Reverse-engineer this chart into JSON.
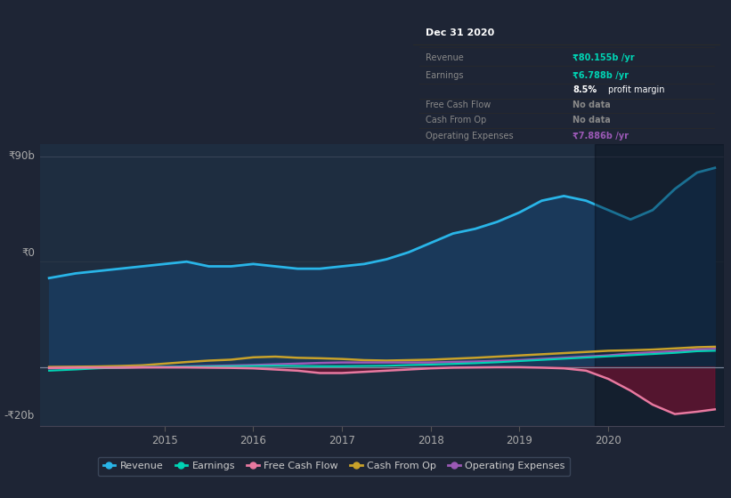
{
  "background_color": "#1e2535",
  "plot_bg_color": "#1e2d40",
  "ylim": [
    -25,
    95
  ],
  "xlim": [
    2013.6,
    2021.3
  ],
  "revenue_color": "#29b5e8",
  "revenue_fill": "#1a3a5c",
  "earnings_color": "#00d4b4",
  "free_cashflow_color": "#e879a0",
  "cash_from_op_color": "#c9a22a",
  "operating_exp_color": "#9b59b6",
  "shaded_fill_color": "#5c1a35",
  "dark_overlay_color": "#0a0f1a",
  "revenue_x": [
    2013.7,
    2014.0,
    2014.25,
    2014.5,
    2014.75,
    2015.0,
    2015.25,
    2015.5,
    2015.75,
    2016.0,
    2016.25,
    2016.5,
    2016.75,
    2017.0,
    2017.25,
    2017.5,
    2017.75,
    2018.0,
    2018.25,
    2018.5,
    2018.75,
    2019.0,
    2019.25,
    2019.5,
    2019.75,
    2020.0,
    2020.25,
    2020.5,
    2020.75,
    2021.0,
    2021.2
  ],
  "revenue_y": [
    38,
    40,
    41,
    42,
    43,
    44,
    45,
    43,
    43,
    44,
    43,
    42,
    42,
    43,
    44,
    46,
    49,
    53,
    57,
    59,
    62,
    66,
    71,
    73,
    71,
    67,
    63,
    67,
    76,
    83,
    85
  ],
  "earnings_x": [
    2013.7,
    2014.0,
    2014.25,
    2014.5,
    2014.75,
    2015.0,
    2015.25,
    2015.5,
    2015.75,
    2016.0,
    2016.25,
    2016.5,
    2016.75,
    2017.0,
    2017.25,
    2017.5,
    2017.75,
    2018.0,
    2018.25,
    2018.5,
    2018.75,
    2019.0,
    2019.25,
    2019.5,
    2019.75,
    2020.0,
    2020.25,
    2020.5,
    2020.75,
    2021.0,
    2021.2
  ],
  "earnings_y": [
    -1.5,
    -1.0,
    -0.5,
    -0.2,
    0.0,
    0.1,
    0.2,
    0.3,
    0.4,
    0.5,
    0.6,
    0.5,
    0.4,
    0.4,
    0.5,
    0.6,
    0.9,
    1.1,
    1.4,
    1.7,
    2.1,
    2.6,
    3.1,
    3.6,
    4.1,
    4.6,
    5.1,
    5.6,
    6.1,
    6.8,
    7.0
  ],
  "free_cashflow_x": [
    2013.7,
    2014.0,
    2014.25,
    2014.5,
    2014.75,
    2015.0,
    2015.25,
    2015.5,
    2015.75,
    2016.0,
    2016.25,
    2016.5,
    2016.75,
    2017.0,
    2017.25,
    2017.5,
    2017.75,
    2018.0,
    2018.25,
    2018.5,
    2018.75,
    2019.0,
    2019.25,
    2019.5,
    2019.75,
    2020.0,
    2020.25,
    2020.5,
    2020.75,
    2021.0,
    2021.2
  ],
  "free_cashflow_y": [
    -0.3,
    -0.2,
    -0.2,
    -0.2,
    -0.1,
    -0.1,
    -0.1,
    -0.2,
    -0.3,
    -0.5,
    -1.0,
    -1.5,
    -2.5,
    -2.5,
    -2.0,
    -1.5,
    -1.0,
    -0.5,
    -0.2,
    -0.1,
    0.0,
    0.0,
    -0.2,
    -0.5,
    -1.5,
    -5.0,
    -10.0,
    -16.0,
    -20.0,
    -19.0,
    -18.0
  ],
  "cash_from_op_x": [
    2013.7,
    2014.0,
    2014.25,
    2014.5,
    2014.75,
    2015.0,
    2015.25,
    2015.5,
    2015.75,
    2016.0,
    2016.25,
    2016.5,
    2016.75,
    2017.0,
    2017.25,
    2017.5,
    2017.75,
    2018.0,
    2018.25,
    2018.5,
    2018.75,
    2019.0,
    2019.25,
    2019.5,
    2019.75,
    2020.0,
    2020.25,
    2020.5,
    2020.75,
    2021.0,
    2021.2
  ],
  "cash_from_op_y": [
    0.1,
    0.2,
    0.3,
    0.5,
    0.8,
    1.5,
    2.2,
    2.8,
    3.2,
    4.2,
    4.5,
    4.0,
    3.8,
    3.5,
    3.0,
    2.8,
    3.0,
    3.2,
    3.6,
    4.0,
    4.5,
    5.0,
    5.5,
    6.0,
    6.5,
    7.0,
    7.2,
    7.5,
    8.0,
    8.5,
    8.7
  ],
  "operating_exp_x": [
    2013.7,
    2014.0,
    2014.25,
    2014.5,
    2014.75,
    2015.0,
    2015.25,
    2015.5,
    2015.75,
    2016.0,
    2016.25,
    2016.5,
    2016.75,
    2017.0,
    2017.25,
    2017.5,
    2017.75,
    2018.0,
    2018.25,
    2018.5,
    2018.75,
    2019.0,
    2019.25,
    2019.5,
    2019.75,
    2020.0,
    2020.25,
    2020.5,
    2020.75,
    2021.0,
    2021.2
  ],
  "operating_exp_y": [
    -0.5,
    -0.3,
    -0.2,
    -0.1,
    0.0,
    0.1,
    0.3,
    0.5,
    0.7,
    0.9,
    1.2,
    1.5,
    1.8,
    2.0,
    2.0,
    2.0,
    2.0,
    2.0,
    2.2,
    2.4,
    2.7,
    3.0,
    3.5,
    4.0,
    4.5,
    5.0,
    5.8,
    6.3,
    6.8,
    7.5,
    7.8
  ],
  "xticklabels": [
    "2015",
    "2016",
    "2017",
    "2018",
    "2019",
    "2020"
  ],
  "xtick_positions": [
    2015,
    2016,
    2017,
    2018,
    2019,
    2020
  ],
  "ytick_90_label": "₹90b",
  "ytick_0_label": "₹0",
  "ytick_neg20_label": "-₹20b",
  "tooltip_title": "Dec 31 2020",
  "tooltip_bg": "#111111",
  "tooltip_border": "#2a2a2a",
  "tooltip_text_color": "#888888",
  "tooltip_cyan": "#00d4b4",
  "tooltip_purple": "#9b59b6",
  "legend_items": [
    {
      "label": "Revenue",
      "color": "#29b5e8"
    },
    {
      "label": "Earnings",
      "color": "#00d4b4"
    },
    {
      "label": "Free Cash Flow",
      "color": "#e879a0"
    },
    {
      "label": "Cash From Op",
      "color": "#c9a22a"
    },
    {
      "label": "Operating Expenses",
      "color": "#9b59b6"
    }
  ]
}
